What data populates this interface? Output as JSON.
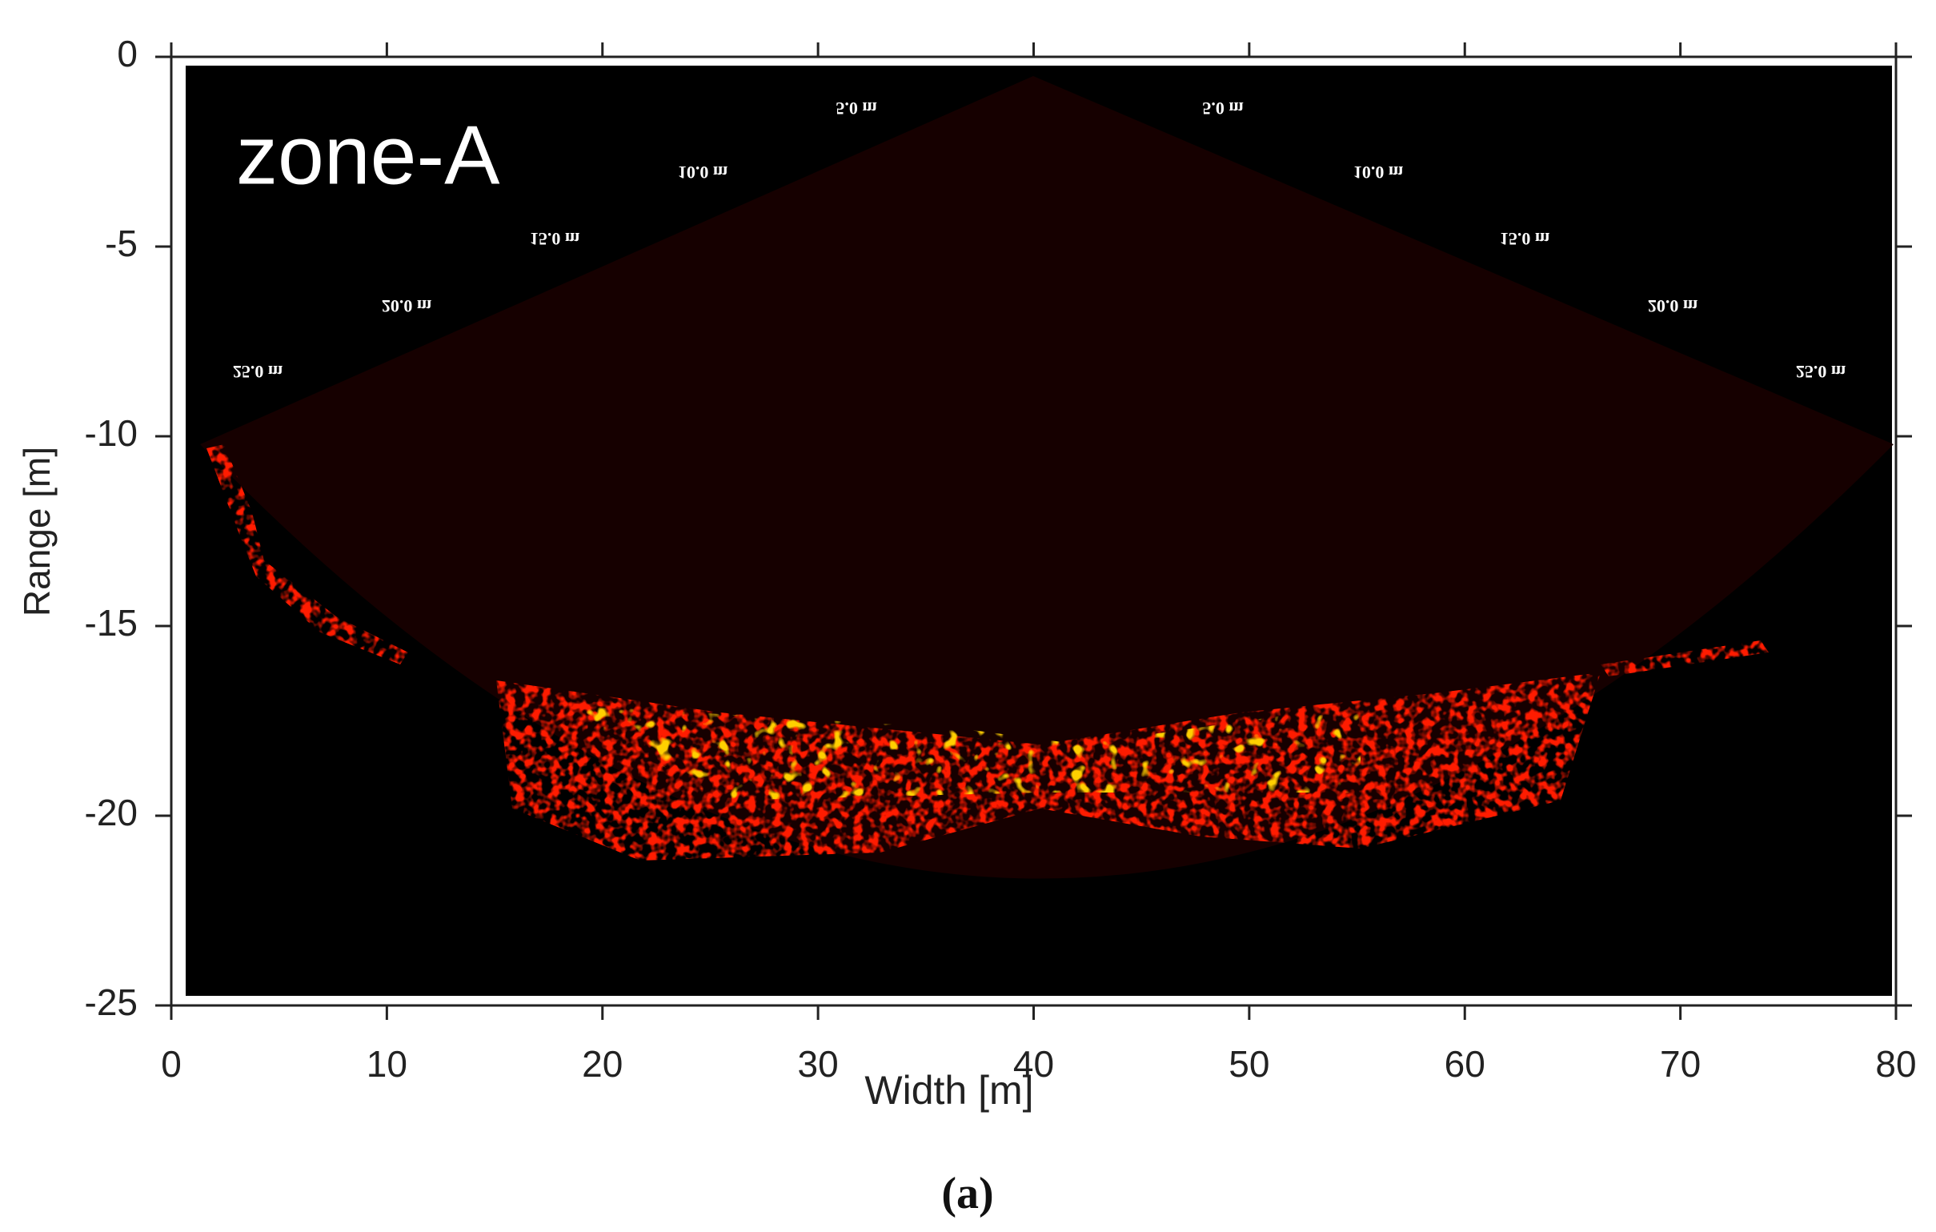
{
  "chart_data": {
    "type": "sonar-image",
    "annotation": "zone-A",
    "xlabel": "Width [m]",
    "ylabel": "Range [m]",
    "caption": "(a)",
    "xlim": [
      0,
      80
    ],
    "ylim": [
      -25,
      0
    ],
    "xticks": [
      0,
      10,
      20,
      30,
      40,
      50,
      60,
      70,
      80
    ],
    "yticks": [
      0,
      -5,
      -10,
      -15,
      -20,
      -25
    ],
    "range_rings": [
      "5.0 m",
      "10.0 m",
      "15.0 m",
      "20.0 m",
      "25.0 m"
    ],
    "color": "#ff1a00"
  }
}
